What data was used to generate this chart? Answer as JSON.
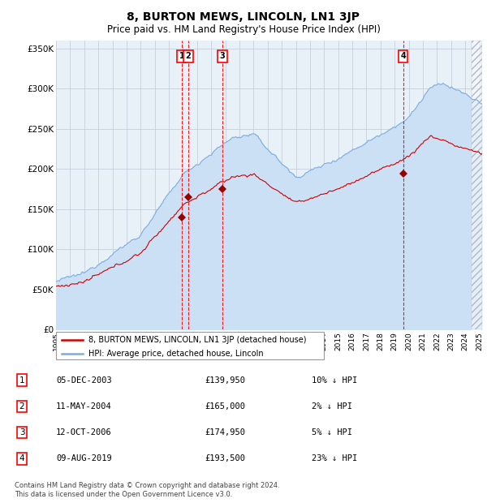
{
  "title": "8, BURTON MEWS, LINCOLN, LN1 3JP",
  "subtitle": "Price paid vs. HM Land Registry's House Price Index (HPI)",
  "ylim": [
    0,
    360000
  ],
  "yticks": [
    0,
    50000,
    100000,
    150000,
    200000,
    250000,
    300000,
    350000
  ],
  "hpi_color": "#7aade0",
  "hpi_fill_color": "#cce0f5",
  "price_color": "#cc0000",
  "sale_marker_color": "#990000",
  "background_color": "#e8f0f8",
  "grid_color": "#c0c8d8",
  "transactions": [
    {
      "num": 1,
      "date": "05-DEC-2003",
      "date_x": 2003.92,
      "price": 139950
    },
    {
      "num": 2,
      "date": "11-MAY-2004",
      "date_x": 2004.36,
      "price": 165000
    },
    {
      "num": 3,
      "date": "12-OCT-2006",
      "date_x": 2006.78,
      "price": 174950
    },
    {
      "num": 4,
      "date": "09-AUG-2019",
      "date_x": 2019.6,
      "price": 193500
    }
  ],
  "table_rows": [
    {
      "num": 1,
      "date": "05-DEC-2003",
      "price": "£139,950",
      "pct": "10% ↓ HPI"
    },
    {
      "num": 2,
      "date": "11-MAY-2004",
      "price": "£165,000",
      "pct": "2% ↓ HPI"
    },
    {
      "num": 3,
      "date": "12-OCT-2006",
      "price": "£174,950",
      "pct": "5% ↓ HPI"
    },
    {
      "num": 4,
      "date": "09-AUG-2019",
      "price": "£193,500",
      "pct": "23% ↓ HPI"
    }
  ],
  "footnote": "Contains HM Land Registry data © Crown copyright and database right 2024.\nThis data is licensed under the Open Government Licence v3.0.",
  "hatch_region_start": 2024.42,
  "xmin": 1995,
  "xmax": 2025.2
}
